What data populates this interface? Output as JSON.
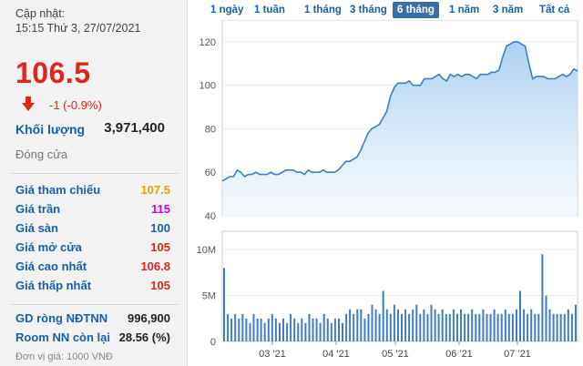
{
  "info": {
    "update_label": "Cập nhật:",
    "update_time": "15:15 Thứ 3, 27/07/2021",
    "price": "106.5",
    "change": "-1 (-0.9%)",
    "volume_label": "Khối lượng",
    "volume_value": "3,971,400",
    "close_label": "Đóng cửa",
    "rows": [
      {
        "label": "Giá tham chiếu",
        "value": "107.5",
        "color": "#e8a100"
      },
      {
        "label": "Giá trần",
        "value": "115",
        "color": "#d400d4"
      },
      {
        "label": "Giá sàn",
        "value": "100",
        "color": "#1a5fa8"
      },
      {
        "label": "Giá mở cửa",
        "value": "105",
        "color": "#e0251b"
      },
      {
        "label": "Giá cao nhất",
        "value": "106.8",
        "color": "#e0251b"
      },
      {
        "label": "Giá thấp nhất",
        "value": "105",
        "color": "#e0251b"
      }
    ],
    "foreign_net_label": "GD ròng NĐTNN",
    "foreign_net_value": "996,900",
    "room_label": "Room NN còn lại",
    "room_value": "28.56 (%)",
    "unit_label": "Đơn vị giá: 1000 VNĐ"
  },
  "tabs": [
    "1 ngày",
    "1 tuần",
    "1 tháng",
    "3 tháng",
    "6 tháng",
    "1 năm",
    "3 năm",
    "Tất cả"
  ],
  "active_tab": "6 tháng",
  "colors": {
    "accent": "#3a6ea5",
    "down": "#e0251b",
    "area_top": "#a8cdef",
    "line": "#3d7fc1",
    "volume_bar": "#3d7fc1"
  },
  "chart_data": [
    {
      "type": "area",
      "x_tick_labels": [
        "03 '21",
        "04 '21",
        "05 '21",
        "06 '21",
        "07 '21"
      ],
      "y_ticks": [
        40,
        60,
        80,
        100,
        120
      ],
      "ylim": [
        40,
        130
      ],
      "values": [
        56,
        57,
        58,
        58,
        61,
        60,
        58,
        59,
        59,
        60,
        59,
        59,
        59,
        60,
        59,
        59,
        60,
        61,
        61,
        61,
        60,
        60,
        59,
        61,
        60,
        60,
        60,
        61,
        60,
        60,
        60,
        61,
        63,
        65,
        65,
        66,
        67,
        70,
        74,
        78,
        80,
        81,
        82,
        85,
        88,
        95,
        99,
        101,
        101,
        101,
        102,
        100,
        100,
        100,
        103,
        103,
        103,
        104,
        105,
        103,
        102,
        105,
        104,
        105,
        104,
        105,
        105,
        104,
        103,
        105,
        105,
        105,
        106,
        106,
        107,
        113,
        118,
        119,
        120,
        120,
        119,
        118,
        110,
        103,
        104,
        104,
        104,
        103,
        103,
        103,
        104,
        105,
        104,
        105,
        107.5,
        106.5
      ]
    },
    {
      "type": "bar",
      "y_tick_labels": [
        "0",
        "5M",
        "10M"
      ],
      "ylim": [
        0,
        12
      ],
      "values": [
        8,
        3,
        2.5,
        3,
        2.5,
        3,
        2.5,
        2,
        3,
        2.5,
        2.5,
        2,
        2.5,
        3,
        2.5,
        2,
        2.5,
        2,
        3,
        2.5,
        2,
        2.5,
        2,
        3,
        2.5,
        2.5,
        2,
        3,
        2.5,
        2,
        2.5,
        2.5,
        2,
        3,
        3.5,
        3,
        3.5,
        3.5,
        2.5,
        3,
        4,
        3.5,
        3,
        5.5,
        3.5,
        3,
        4,
        3.5,
        3,
        3.5,
        3,
        3.5,
        4,
        3,
        3.5,
        3,
        4,
        3.5,
        3,
        3.5,
        3,
        3,
        3.5,
        3,
        3.5,
        3,
        3,
        3.5,
        3,
        3,
        3.5,
        3,
        3,
        3.5,
        3,
        3,
        3.5,
        3,
        3,
        3.5,
        5.5,
        3.5,
        3,
        3.5,
        3,
        3,
        9.5,
        5,
        3.5,
        3,
        3,
        3,
        3,
        3.5,
        3,
        4
      ]
    }
  ]
}
